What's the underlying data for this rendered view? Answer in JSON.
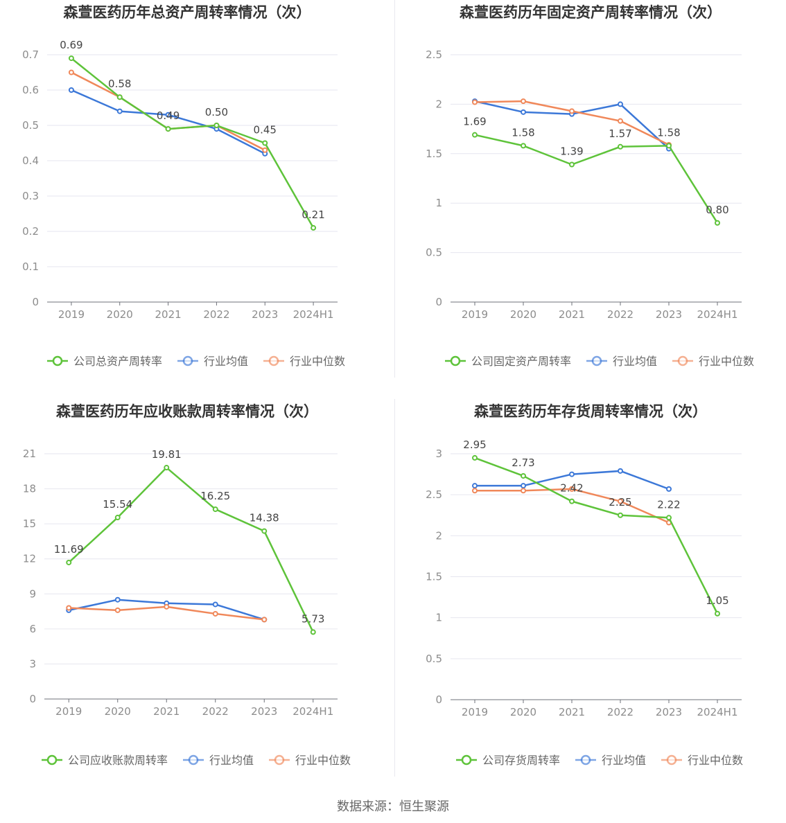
{
  "footer": {
    "source": "数据来源：恒生聚源"
  },
  "colors": {
    "company": "#5ec33a",
    "average": "#3c78d8",
    "median": "#f0885a"
  },
  "chart_data": [
    {
      "type": "line",
      "title": "森萱医药历年总资产周转率情况（次）",
      "categories": [
        "2019",
        "2020",
        "2021",
        "2022",
        "2023",
        "2024H1"
      ],
      "ylim": [
        0,
        0.7
      ],
      "yticks": [
        0,
        0.1,
        0.2,
        0.3,
        0.4,
        0.5,
        0.6,
        0.7
      ],
      "ytick_labels": [
        "0",
        "0.1",
        "0.2",
        "0.3",
        "0.4",
        "0.5",
        "0.6",
        "0.7"
      ],
      "series": [
        {
          "name": "公司总资产周转率",
          "key": "company",
          "values": [
            0.69,
            0.58,
            0.49,
            0.5,
            0.45,
            0.21
          ],
          "labels": [
            "0.69",
            "0.58",
            "0.49",
            "0.50",
            "0.45",
            "0.21"
          ]
        },
        {
          "name": "行业均值",
          "key": "average",
          "values": [
            0.6,
            0.54,
            0.53,
            0.49,
            0.42,
            null
          ]
        },
        {
          "name": "行业中位数",
          "key": "median",
          "values": [
            0.65,
            0.58,
            0.49,
            0.5,
            0.43,
            null
          ]
        }
      ]
    },
    {
      "type": "line",
      "title": "森萱医药历年固定资产周转率情况（次）",
      "categories": [
        "2019",
        "2020",
        "2021",
        "2022",
        "2023",
        "2024H1"
      ],
      "ylim": [
        0,
        2.5
      ],
      "yticks": [
        0,
        0.5,
        1,
        1.5,
        2,
        2.5
      ],
      "ytick_labels": [
        "0",
        "0.5",
        "1",
        "1.5",
        "2",
        "2.5"
      ],
      "series": [
        {
          "name": "公司固定资产周转率",
          "key": "company",
          "values": [
            1.69,
            1.58,
            1.39,
            1.57,
            1.58,
            0.8
          ],
          "labels": [
            "1.69",
            "1.58",
            "1.39",
            "1.57",
            "1.58",
            "0.80"
          ]
        },
        {
          "name": "行业均值",
          "key": "average",
          "values": [
            2.03,
            1.92,
            1.9,
            2.0,
            1.55,
            null
          ]
        },
        {
          "name": "行业中位数",
          "key": "median",
          "values": [
            2.02,
            2.03,
            1.93,
            1.83,
            1.59,
            null
          ]
        }
      ]
    },
    {
      "type": "line",
      "title": "森萱医药历年应收账款周转率情况（次）",
      "categories": [
        "2019",
        "2020",
        "2021",
        "2022",
        "2023",
        "2024H1"
      ],
      "ylim": [
        0,
        21
      ],
      "yticks": [
        0,
        3,
        6,
        9,
        12,
        15,
        18,
        21
      ],
      "ytick_labels": [
        "0",
        "3",
        "6",
        "9",
        "12",
        "15",
        "18",
        "21"
      ],
      "series": [
        {
          "name": "公司应收账款周转率",
          "key": "company",
          "values": [
            11.69,
            15.54,
            19.81,
            16.25,
            14.38,
            5.73
          ],
          "labels": [
            "11.69",
            "15.54",
            "19.81",
            "16.25",
            "14.38",
            "5.73"
          ]
        },
        {
          "name": "行业均值",
          "key": "average",
          "values": [
            7.6,
            8.5,
            8.2,
            8.1,
            6.8,
            null
          ]
        },
        {
          "name": "行业中位数",
          "key": "median",
          "values": [
            7.8,
            7.6,
            7.9,
            7.3,
            6.8,
            null
          ]
        }
      ]
    },
    {
      "type": "line",
      "title": "森萱医药历年存货周转率情况（次）",
      "categories": [
        "2019",
        "2020",
        "2021",
        "2022",
        "2023",
        "2024H1"
      ],
      "ylim": [
        0,
        3
      ],
      "yticks": [
        0,
        0.5,
        1,
        1.5,
        2,
        2.5,
        3
      ],
      "ytick_labels": [
        "0",
        "0.5",
        "1",
        "1.5",
        "2",
        "2.5",
        "3"
      ],
      "series": [
        {
          "name": "公司存货周转率",
          "key": "company",
          "values": [
            2.95,
            2.73,
            2.42,
            2.25,
            2.22,
            1.05
          ],
          "labels": [
            "2.95",
            "2.73",
            "2.42",
            "2.25",
            "2.22",
            "1.05"
          ]
        },
        {
          "name": "行业均值",
          "key": "average",
          "values": [
            2.61,
            2.61,
            2.75,
            2.79,
            2.57,
            null
          ]
        },
        {
          "name": "行业中位数",
          "key": "median",
          "values": [
            2.55,
            2.55,
            2.57,
            2.42,
            2.16,
            null
          ]
        }
      ]
    }
  ]
}
